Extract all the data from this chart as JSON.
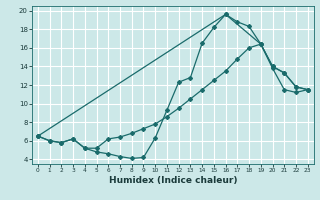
{
  "xlabel": "Humidex (Indice chaleur)",
  "bg_color": "#cce8e8",
  "grid_color": "#ffffff",
  "line_color": "#1a6b6b",
  "xlim": [
    -0.5,
    23.5
  ],
  "ylim": [
    3.5,
    20.5
  ],
  "xticks": [
    0,
    1,
    2,
    3,
    4,
    5,
    6,
    7,
    8,
    9,
    10,
    11,
    12,
    13,
    14,
    15,
    16,
    17,
    18,
    19,
    20,
    21,
    22,
    23
  ],
  "yticks": [
    4,
    6,
    8,
    10,
    12,
    14,
    16,
    18,
    20
  ],
  "series1_x": [
    0,
    1,
    2,
    3,
    4,
    5,
    6,
    7,
    8,
    9,
    10,
    11,
    12,
    13,
    14,
    15,
    16,
    17,
    18,
    19,
    20,
    21,
    22,
    23
  ],
  "series1_y": [
    6.5,
    6.0,
    5.8,
    6.2,
    5.2,
    4.8,
    4.6,
    4.3,
    4.1,
    4.2,
    6.3,
    9.3,
    12.3,
    12.8,
    16.5,
    18.2,
    19.6,
    18.8,
    18.3,
    16.4,
    14.0,
    13.3,
    11.8,
    11.5
  ],
  "series2_x": [
    0,
    1,
    2,
    3,
    4,
    5,
    6,
    7,
    8,
    9,
    10,
    11,
    12,
    13,
    14,
    15,
    16,
    17,
    18,
    19,
    20,
    21,
    22,
    23
  ],
  "series2_y": [
    6.5,
    6.0,
    5.8,
    6.2,
    5.2,
    5.2,
    6.2,
    6.4,
    6.8,
    7.3,
    7.8,
    8.6,
    9.5,
    10.5,
    11.5,
    12.5,
    13.5,
    14.8,
    16.0,
    16.4,
    13.8,
    11.5,
    11.2,
    11.5
  ],
  "series3_x": [
    0,
    16,
    19,
    20,
    21,
    22,
    23
  ],
  "series3_y": [
    6.5,
    19.6,
    16.4,
    14.0,
    13.3,
    11.8,
    11.5
  ]
}
